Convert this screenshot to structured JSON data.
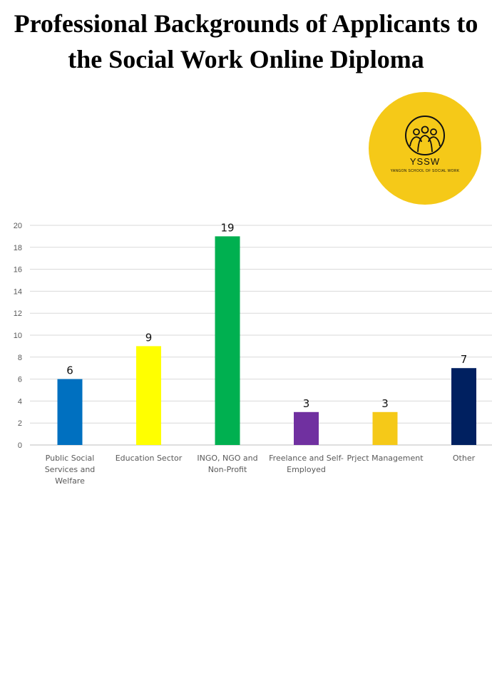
{
  "title": {
    "line1": "Professional Backgrounds of Applicants to",
    "line2": "the Social Work Online Diploma"
  },
  "logo": {
    "name": "YSSW",
    "subtitle": "YANGON SCHOOL OF SOCIAL WORK",
    "icon": "people-group-icon",
    "color": "#f5c918"
  },
  "chart_data": {
    "type": "bar",
    "categories": [
      [
        "Public Social",
        "Services and",
        "Welfare"
      ],
      [
        "Education Sector"
      ],
      [
        "INGO, NGO and",
        "Non-Profit"
      ],
      [
        "Freelance and Self-",
        "Employed"
      ],
      [
        "Prject Management"
      ],
      [
        "Other"
      ]
    ],
    "values": [
      6,
      9,
      19,
      3,
      3,
      7
    ],
    "colors": [
      "#0070c0",
      "#ffff00",
      "#00b050",
      "#7030a0",
      "#f5c918",
      "#002060"
    ],
    "ylim": [
      0,
      20
    ],
    "yticks": [
      0,
      2,
      4,
      6,
      8,
      10,
      12,
      14,
      16,
      18,
      20
    ],
    "grid": true,
    "data_labels": true
  }
}
